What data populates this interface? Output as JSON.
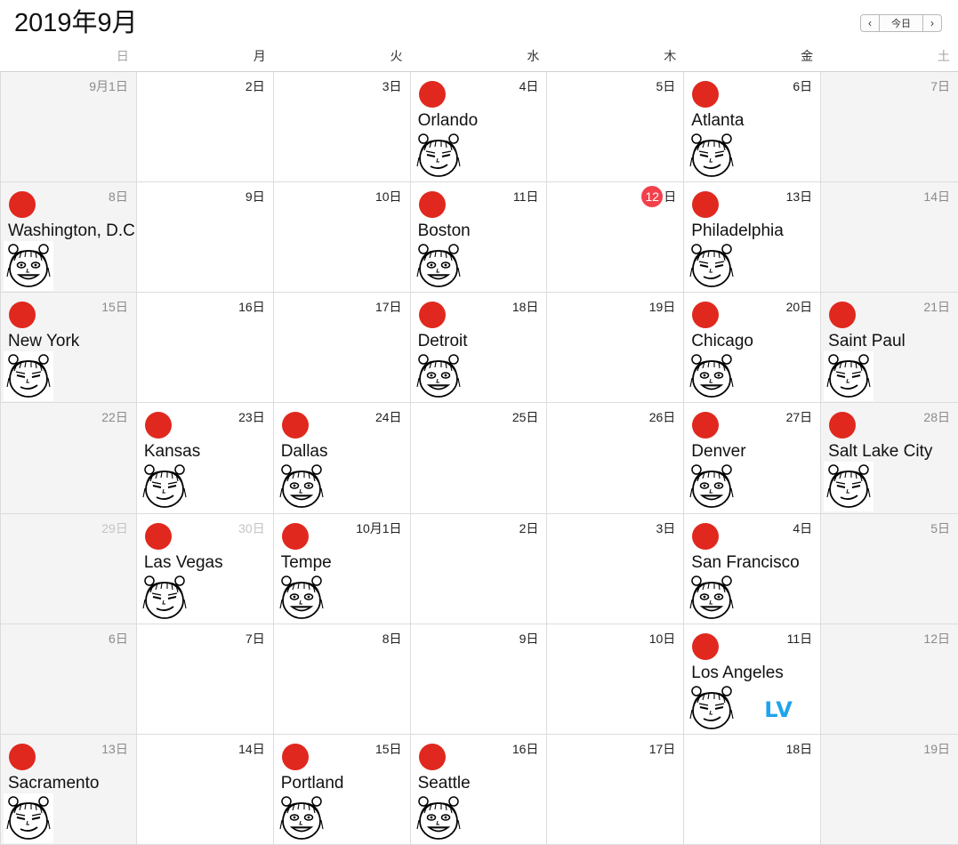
{
  "header": {
    "month_title": "2019年9月",
    "prev_icon": "chevron-left-icon",
    "next_icon": "chevron-right-icon",
    "prev_label": "‹",
    "today_label": "今日",
    "next_label": "›"
  },
  "weekdays": [
    "日",
    "月",
    "火",
    "水",
    "木",
    "金",
    "土"
  ],
  "colors": {
    "event_dot": "#e0281e",
    "today": "#f2414b",
    "lv": "#1fa4ea"
  },
  "cells": [
    {
      "day": "9月1日",
      "weekend": true
    },
    {
      "day": "2日"
    },
    {
      "day": "3日"
    },
    {
      "day": "4日",
      "event": "Orlando",
      "face": "smirk"
    },
    {
      "day": "5日"
    },
    {
      "day": "6日",
      "event": "Atlanta",
      "face": "smirk"
    },
    {
      "day": "7日",
      "weekend": true
    },
    {
      "day": "8日",
      "weekend": true,
      "event": "Washington, D.C.",
      "face": "grin"
    },
    {
      "day": "9日"
    },
    {
      "day": "10日"
    },
    {
      "day": "11日",
      "event": "Boston",
      "face": "grin"
    },
    {
      "day": "12",
      "today": true,
      "suffix": "日"
    },
    {
      "day": "13日",
      "event": "Philadelphia",
      "face": "smirk"
    },
    {
      "day": "14日",
      "weekend": true
    },
    {
      "day": "15日",
      "weekend": true,
      "event": "New York",
      "face": "smirk"
    },
    {
      "day": "16日"
    },
    {
      "day": "17日"
    },
    {
      "day": "18日",
      "event": "Detroit",
      "face": "grin"
    },
    {
      "day": "19日"
    },
    {
      "day": "20日",
      "event": "Chicago",
      "face": "grin"
    },
    {
      "day": "21日",
      "weekend": true,
      "event": "Saint Paul",
      "face": "smirk"
    },
    {
      "day": "22日",
      "weekend": true
    },
    {
      "day": "23日",
      "event": "Kansas",
      "face": "smirk"
    },
    {
      "day": "24日",
      "event": "Dallas",
      "face": "grin"
    },
    {
      "day": "25日"
    },
    {
      "day": "26日"
    },
    {
      "day": "27日",
      "event": "Denver",
      "face": "grin"
    },
    {
      "day": "28日",
      "weekend": true,
      "event": "Salt Lake City",
      "face": "smirk"
    },
    {
      "day": "29日",
      "weekend": true,
      "other": true
    },
    {
      "day": "30日",
      "other": true,
      "event": "Las Vegas",
      "face": "smirk"
    },
    {
      "day": "10月1日",
      "event": "Tempe",
      "face": "grin"
    },
    {
      "day": "2日"
    },
    {
      "day": "3日"
    },
    {
      "day": "4日",
      "event": "San Francisco",
      "face": "grin"
    },
    {
      "day": "5日",
      "weekend": true
    },
    {
      "day": "6日",
      "weekend": true
    },
    {
      "day": "7日"
    },
    {
      "day": "8日"
    },
    {
      "day": "9日"
    },
    {
      "day": "10日"
    },
    {
      "day": "11日",
      "event": "Los Angeles",
      "face": "smirk",
      "badge": "LV"
    },
    {
      "day": "12日",
      "weekend": true
    },
    {
      "day": "13日",
      "weekend": true,
      "event": "Sacramento",
      "face": "smirk"
    },
    {
      "day": "14日"
    },
    {
      "day": "15日",
      "event": "Portland",
      "face": "grin"
    },
    {
      "day": "16日",
      "event": "Seattle",
      "face": "grin"
    },
    {
      "day": "17日"
    },
    {
      "day": "18日"
    },
    {
      "day": "19日",
      "weekend": true
    }
  ]
}
